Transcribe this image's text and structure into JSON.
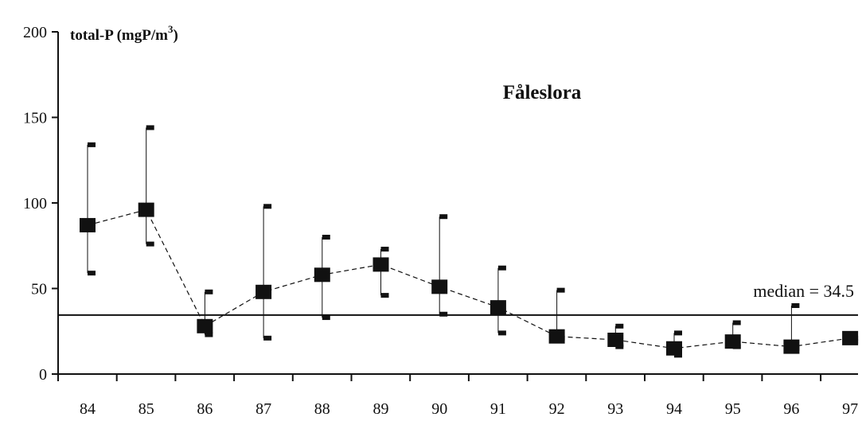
{
  "chart_data": {
    "type": "scatter",
    "title": "Fåleslora",
    "ylabel": "total-P (mgP/m³)",
    "xlabel": "",
    "ylim": [
      0,
      200
    ],
    "yticks": [
      0,
      50,
      100,
      150,
      200
    ],
    "categories": [
      "84",
      "85",
      "86",
      "87",
      "88",
      "89",
      "90",
      "91",
      "92",
      "93",
      "94",
      "95",
      "96",
      "97"
    ],
    "mean": [
      87,
      96,
      28,
      48,
      58,
      64,
      51,
      39,
      22,
      20,
      15,
      19,
      16,
      21
    ],
    "max": [
      134,
      144,
      48,
      98,
      80,
      73,
      92,
      62,
      49,
      28,
      24,
      30,
      40,
      21
    ],
    "min": [
      59,
      76,
      23,
      21,
      33,
      46,
      35,
      24,
      21,
      16,
      11,
      16,
      15,
      19
    ],
    "median_line": {
      "value": 34.5,
      "label": "median = 34.5"
    },
    "colors": {
      "marker": "#111111",
      "line": "#111111"
    },
    "grid": false
  }
}
